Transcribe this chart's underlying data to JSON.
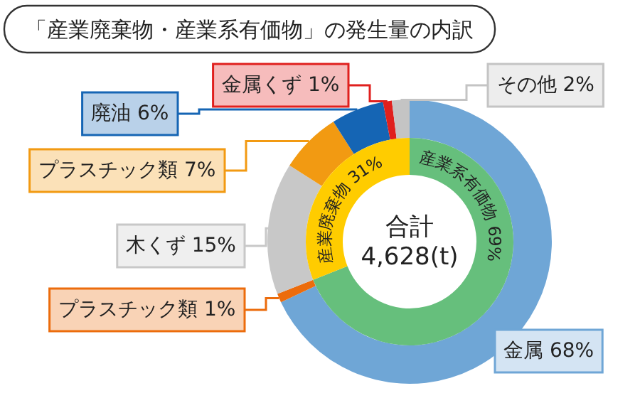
{
  "chart_data": [
    {
      "type": "donut",
      "title": "「産業廃棄物・産業系有価物」の発生量の内訳",
      "categories": [
        "金属",
        "プラスチック類",
        "木くず",
        "プラスチック類",
        "廃油",
        "金属くず",
        "その他"
      ],
      "values": [
        68,
        1,
        15,
        7,
        6,
        1,
        2
      ],
      "value_labels": [
        "68%",
        "1%",
        "15%",
        "7%",
        "6%",
        "1%",
        "2%"
      ],
      "colors": [
        "#6fa6d6",
        "#ec6c0c",
        "#c8c8c8",
        "#f29a12",
        "#1565b4",
        "#e0201e",
        "#c4c4c4"
      ]
    },
    {
      "type": "donut",
      "categories": [
        "産業系有価物",
        "産業廃棄物"
      ],
      "values": [
        69,
        31
      ],
      "value_labels": [
        "69%",
        "31%"
      ],
      "colors": [
        "#66bf7c",
        "#ffcc00"
      ],
      "annotations": [
        "合計\n4,628(t)"
      ]
    }
  ]
}
